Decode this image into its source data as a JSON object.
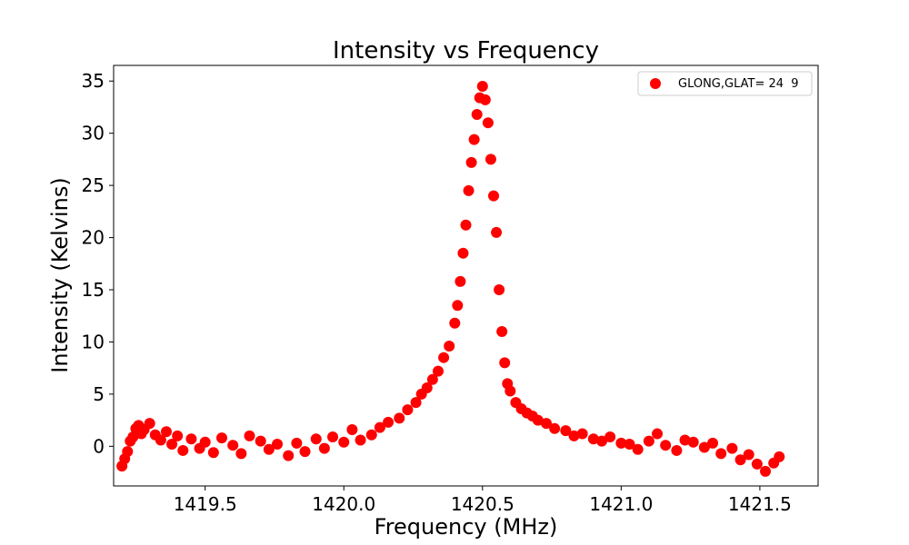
{
  "chart_data": {
    "type": "scatter",
    "title": "Intensity vs Frequency",
    "xlabel": "Frequency (MHz)",
    "ylabel": "Intensity (Kelvins)",
    "xlim": [
      1419.17,
      1421.71
    ],
    "ylim": [
      -3.8,
      36.5
    ],
    "xticks": [
      1419.5,
      1420.0,
      1420.5,
      1421.0,
      1421.5
    ],
    "xtick_labels": [
      "1419.5",
      "1420.0",
      "1420.5",
      "1421.0",
      "1421.5"
    ],
    "yticks": [
      0,
      5,
      10,
      15,
      20,
      25,
      30,
      35
    ],
    "ytick_labels": [
      "0",
      "5",
      "10",
      "15",
      "20",
      "25",
      "30",
      "35"
    ],
    "grid": false,
    "legend_position": "upper right",
    "series": [
      {
        "name": "GLONG,GLAT= 24  9",
        "color": "#ff0000",
        "x": [
          1419.2,
          1419.21,
          1419.22,
          1419.23,
          1419.24,
          1419.25,
          1419.26,
          1419.27,
          1419.28,
          1419.3,
          1419.32,
          1419.34,
          1419.36,
          1419.38,
          1419.4,
          1419.42,
          1419.45,
          1419.48,
          1419.5,
          1419.53,
          1419.56,
          1419.6,
          1419.63,
          1419.66,
          1419.7,
          1419.73,
          1419.76,
          1419.8,
          1419.83,
          1419.86,
          1419.9,
          1419.93,
          1419.96,
          1420.0,
          1420.03,
          1420.06,
          1420.1,
          1420.13,
          1420.16,
          1420.2,
          1420.23,
          1420.26,
          1420.28,
          1420.3,
          1420.32,
          1420.34,
          1420.36,
          1420.38,
          1420.4,
          1420.41,
          1420.42,
          1420.43,
          1420.44,
          1420.45,
          1420.46,
          1420.47,
          1420.48,
          1420.49,
          1420.5,
          1420.51,
          1420.52,
          1420.53,
          1420.54,
          1420.55,
          1420.56,
          1420.57,
          1420.58,
          1420.59,
          1420.6,
          1420.62,
          1420.64,
          1420.66,
          1420.68,
          1420.7,
          1420.73,
          1420.76,
          1420.8,
          1420.83,
          1420.86,
          1420.9,
          1420.93,
          1420.96,
          1421.0,
          1421.03,
          1421.06,
          1421.1,
          1421.13,
          1421.16,
          1421.2,
          1421.23,
          1421.26,
          1421.3,
          1421.33,
          1421.36,
          1421.4,
          1421.43,
          1421.46,
          1421.49,
          1421.52,
          1421.55,
          1421.57
        ],
        "y": [
          -1.9,
          -1.2,
          -0.5,
          0.5,
          0.9,
          1.7,
          2.0,
          1.2,
          1.6,
          2.2,
          1.1,
          0.6,
          1.4,
          0.2,
          1.0,
          -0.4,
          0.7,
          -0.2,
          0.4,
          -0.6,
          0.8,
          0.1,
          -0.7,
          1.0,
          0.5,
          -0.3,
          0.2,
          -0.9,
          0.3,
          -0.5,
          0.7,
          -0.2,
          0.9,
          0.4,
          1.6,
          0.6,
          1.1,
          1.8,
          2.3,
          2.7,
          3.5,
          4.2,
          5.0,
          5.6,
          6.4,
          7.2,
          8.5,
          9.6,
          11.8,
          13.5,
          15.8,
          18.5,
          21.2,
          24.5,
          27.2,
          29.4,
          31.8,
          33.4,
          34.5,
          33.2,
          31.0,
          27.5,
          24.0,
          20.5,
          15.0,
          11.0,
          8.0,
          6.0,
          5.3,
          4.2,
          3.6,
          3.2,
          2.9,
          2.5,
          2.2,
          1.7,
          1.5,
          1.0,
          1.2,
          0.7,
          0.5,
          0.9,
          0.3,
          0.2,
          -0.3,
          0.5,
          1.2,
          0.1,
          -0.4,
          0.6,
          0.4,
          -0.1,
          0.3,
          -0.7,
          -0.2,
          -1.3,
          -0.8,
          -1.7,
          -2.4,
          -1.6,
          -1.0
        ]
      }
    ]
  }
}
